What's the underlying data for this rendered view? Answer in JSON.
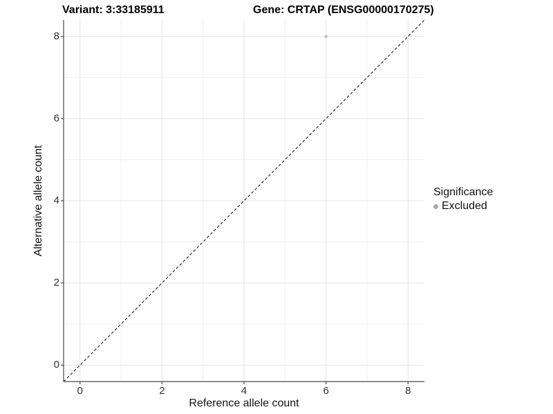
{
  "titles": {
    "variant": "Variant: 3:33185911",
    "gene": "Gene: CRTAP (ENSG00000170275)"
  },
  "chart_data": {
    "type": "scatter",
    "title": "Variant: 3:33185911   Gene: CRTAP (ENSG00000170275)",
    "xlabel": "Reference allele count",
    "ylabel": "Alternative allele count",
    "xlim": [
      -0.4,
      8.4
    ],
    "ylim": [
      -0.4,
      8.4
    ],
    "x_ticks": [
      0,
      2,
      4,
      6,
      8
    ],
    "y_ticks": [
      0,
      2,
      4,
      6,
      8
    ],
    "x_minor_ticks": [
      1,
      3,
      5,
      7
    ],
    "y_minor_ticks": [
      1,
      3,
      5,
      7
    ],
    "grid": true,
    "series": [
      {
        "name": "Excluded",
        "points": [
          {
            "x": 6,
            "y": 8
          }
        ]
      }
    ],
    "identity_line": {
      "style": "dashed",
      "from": [
        -0.4,
        -0.4
      ],
      "to": [
        8.4,
        8.4
      ]
    },
    "legend": {
      "position": "right",
      "title": "Significance",
      "entries": [
        {
          "label": "Excluded",
          "color": "#ababab"
        }
      ]
    }
  },
  "colors": {
    "point": "#bebebe",
    "legend_dot": "#ababab",
    "grid_major": "#e3e3e3",
    "grid_minor": "#f0f0f0",
    "axis_line": "#474747",
    "identity_line": "#000000",
    "background": "#ffffff"
  }
}
